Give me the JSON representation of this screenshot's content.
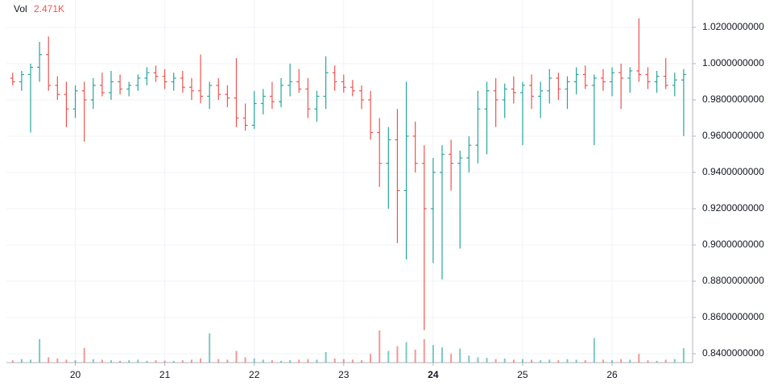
{
  "chart_data": {
    "type": "ohlc",
    "volume_name": "Vol",
    "volume_last": 2471,
    "volume_last_label": "2.471K",
    "up_color": "#26a69a",
    "down_color": "#ef5350",
    "grid": true,
    "x": [
      19.3,
      19.4,
      19.5,
      19.6,
      19.7,
      19.8,
      19.9,
      20.0,
      20.1,
      20.2,
      20.3,
      20.4,
      20.5,
      20.6,
      20.7,
      20.8,
      20.9,
      21.0,
      21.1,
      21.2,
      21.3,
      21.4,
      21.5,
      21.6,
      21.7,
      21.8,
      21.9,
      22.0,
      22.1,
      22.2,
      22.3,
      22.4,
      22.5,
      22.6,
      22.7,
      22.8,
      22.9,
      23.0,
      23.1,
      23.2,
      23.3,
      23.4,
      23.5,
      23.6,
      23.7,
      23.8,
      23.9,
      24.0,
      24.1,
      24.2,
      24.3,
      24.4,
      24.5,
      24.6,
      24.7,
      24.8,
      24.9,
      25.0,
      25.1,
      25.2,
      25.3,
      25.4,
      25.5,
      25.6,
      25.7,
      25.8,
      25.9,
      26.0,
      26.1,
      26.2,
      26.3,
      26.4,
      26.5,
      26.6,
      26.7,
      26.8
    ],
    "ohlc": [
      [
        0.992,
        0.995,
        0.988,
        0.99
      ],
      [
        0.99,
        0.996,
        0.985,
        0.994
      ],
      [
        0.994,
        1.0,
        0.962,
        0.998
      ],
      [
        0.998,
        1.012,
        0.99,
        1.005
      ],
      [
        1.005,
        1.015,
        0.985,
        0.988
      ],
      [
        0.988,
        0.993,
        0.98,
        0.983
      ],
      [
        0.983,
        0.99,
        0.965,
        0.975
      ],
      [
        0.975,
        0.988,
        0.97,
        0.985
      ],
      [
        0.985,
        0.99,
        0.957,
        0.98
      ],
      [
        0.98,
        0.992,
        0.975,
        0.988
      ],
      [
        0.988,
        0.995,
        0.982,
        0.984
      ],
      [
        0.984,
        0.996,
        0.98,
        0.99
      ],
      [
        0.99,
        0.994,
        0.983,
        0.986
      ],
      [
        0.986,
        0.99,
        0.982,
        0.988
      ],
      [
        0.988,
        0.994,
        0.985,
        0.992
      ],
      [
        0.992,
        0.998,
        0.988,
        0.995
      ],
      [
        0.995,
        0.999,
        0.99,
        0.993
      ],
      [
        0.993,
        0.997,
        0.986,
        0.99
      ],
      [
        0.99,
        0.995,
        0.985,
        0.992
      ],
      [
        0.992,
        0.996,
        0.984,
        0.987
      ],
      [
        0.987,
        0.992,
        0.98,
        0.985
      ],
      [
        0.985,
        1.005,
        0.978,
        0.982
      ],
      [
        0.982,
        0.99,
        0.975,
        0.988
      ],
      [
        0.988,
        0.992,
        0.98,
        0.983
      ],
      [
        0.983,
        0.988,
        0.976,
        0.981
      ],
      [
        0.981,
        1.003,
        0.965,
        0.97
      ],
      [
        0.97,
        0.978,
        0.963,
        0.966
      ],
      [
        0.966,
        0.985,
        0.964,
        0.978
      ],
      [
        0.978,
        0.986,
        0.972,
        0.982
      ],
      [
        0.982,
        0.99,
        0.975,
        0.979
      ],
      [
        0.979,
        0.992,
        0.976,
        0.988
      ],
      [
        0.988,
        1.0,
        0.982,
        0.99
      ],
      [
        0.99,
        0.997,
        0.984,
        0.986
      ],
      [
        0.986,
        0.992,
        0.97,
        0.975
      ],
      [
        0.975,
        0.985,
        0.968,
        0.982
      ],
      [
        0.982,
        1.004,
        0.975,
        0.995
      ],
      [
        0.995,
        0.999,
        0.985,
        0.99
      ],
      [
        0.99,
        0.994,
        0.984,
        0.987
      ],
      [
        0.987,
        0.991,
        0.982,
        0.985
      ],
      [
        0.985,
        0.988,
        0.975,
        0.98
      ],
      [
        0.98,
        0.985,
        0.958,
        0.962
      ],
      [
        0.962,
        0.97,
        0.932,
        0.945
      ],
      [
        0.945,
        0.965,
        0.92,
        0.958
      ],
      [
        0.958,
        0.975,
        0.901,
        0.93
      ],
      [
        0.93,
        0.99,
        0.892,
        0.96
      ],
      [
        0.96,
        0.968,
        0.94,
        0.945
      ],
      [
        0.945,
        0.955,
        0.853,
        0.92
      ],
      [
        0.92,
        0.948,
        0.89,
        0.94
      ],
      [
        0.94,
        0.955,
        0.881,
        0.95
      ],
      [
        0.95,
        0.958,
        0.93,
        0.945
      ],
      [
        0.945,
        0.952,
        0.898,
        0.948
      ],
      [
        0.948,
        0.96,
        0.94,
        0.955
      ],
      [
        0.955,
        0.985,
        0.945,
        0.975
      ],
      [
        0.975,
        0.99,
        0.95,
        0.985
      ],
      [
        0.985,
        0.992,
        0.965,
        0.98
      ],
      [
        0.98,
        0.989,
        0.97,
        0.986
      ],
      [
        0.986,
        0.993,
        0.978,
        0.984
      ],
      [
        0.984,
        0.99,
        0.955,
        0.988
      ],
      [
        0.988,
        0.994,
        0.975,
        0.982
      ],
      [
        0.982,
        0.99,
        0.97,
        0.985
      ],
      [
        0.985,
        0.997,
        0.978,
        0.992
      ],
      [
        0.992,
        0.995,
        0.98,
        0.986
      ],
      [
        0.986,
        0.993,
        0.975,
        0.99
      ],
      [
        0.99,
        0.998,
        0.983,
        0.994
      ],
      [
        0.994,
        0.999,
        0.986,
        0.988
      ],
      [
        0.988,
        0.994,
        0.955,
        0.992
      ],
      [
        0.992,
        0.997,
        0.985,
        0.99
      ],
      [
        0.99,
        0.998,
        0.982,
        0.995
      ],
      [
        0.995,
        1.0,
        0.975,
        0.992
      ],
      [
        0.992,
        0.998,
        0.984,
        0.996
      ],
      [
        0.996,
        1.025,
        0.99,
        0.994
      ],
      [
        0.994,
        0.998,
        0.986,
        0.99
      ],
      [
        0.99,
        0.996,
        0.984,
        0.993
      ],
      [
        0.993,
        1.003,
        0.986,
        0.988
      ],
      [
        0.988,
        0.995,
        0.982,
        0.991
      ],
      [
        0.991,
        0.997,
        0.96,
        0.994
      ]
    ],
    "volume": [
      400,
      600,
      500,
      4000,
      900,
      700,
      500,
      400,
      2500,
      600,
      500,
      400,
      300,
      400,
      500,
      300,
      400,
      350,
      300,
      400,
      500,
      700,
      5000,
      600,
      500,
      2000,
      900,
      700,
      500,
      400,
      300,
      400,
      500,
      600,
      500,
      1800,
      700,
      600,
      500,
      400,
      1500,
      5500,
      2000,
      2800,
      3500,
      2200,
      4000,
      3000,
      2600,
      1500,
      2400,
      1200,
      900,
      800,
      600,
      700,
      500,
      600,
      500,
      400,
      500,
      400,
      600,
      500,
      400,
      4200,
      500,
      400,
      600,
      500,
      1500,
      400,
      300,
      500,
      600,
      2471
    ],
    "xlim": [
      19.23,
      26.9
    ],
    "xticks": [
      20,
      21,
      22,
      23,
      24,
      25,
      26
    ],
    "ylim": [
      0.8351,
      1.0351
    ],
    "yticks": [
      {
        "value": 0.84,
        "label": "0.8400000000"
      },
      {
        "value": 0.86,
        "label": "0.8600000000"
      },
      {
        "value": 0.88,
        "label": "0.8800000000"
      },
      {
        "value": 0.9,
        "label": "0.9000000000"
      },
      {
        "value": 0.92,
        "label": "0.9200000000"
      },
      {
        "value": 0.94,
        "label": "0.9400000000"
      },
      {
        "value": 0.96,
        "label": "0.9600000000"
      },
      {
        "value": 0.98,
        "label": "0.9800000000"
      },
      {
        "value": 1.0,
        "label": "1.0000000000"
      },
      {
        "value": 1.02,
        "label": "1.0200000000"
      }
    ]
  }
}
